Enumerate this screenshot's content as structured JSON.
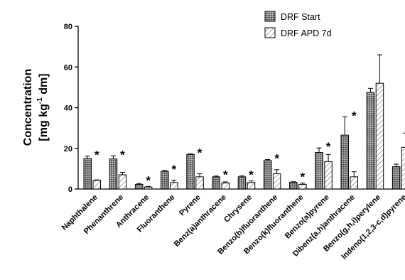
{
  "chart_data": {
    "type": "bar",
    "ylabel_line1": "Concentration",
    "ylabel_line2_prefix": "[mg kg",
    "ylabel_line2_sup": "-1",
    "ylabel_line2_suffix": " dm]",
    "ylim": [
      0,
      80
    ],
    "yticks": [
      "0",
      "20",
      "40",
      "60",
      "80"
    ],
    "categories": [
      "Naphthalene",
      "Phenanthrene",
      "Anthracene",
      "Fluoranthene",
      "Pyrene",
      "Benz(a)anthracene",
      "Chrysene",
      "Benzo(b)fluoranthene",
      "Benzo(k)fluoranthene",
      "Benzo(a)pyrene",
      "Dibenz(a,h)anthracene",
      "Benzo(g,h,i)perylene",
      "Indeno(1,2,3-c,d)pyrene"
    ],
    "series": [
      {
        "name": "DRF Start",
        "values": [
          15,
          14.8,
          2.3,
          8.7,
          17,
          6,
          6,
          14,
          3.3,
          18,
          26.5,
          47.5,
          11
        ],
        "errors": [
          1.2,
          1.5,
          0.4,
          0.4,
          0.3,
          0.4,
          0.5,
          0.5,
          0.3,
          2.2,
          9,
          2,
          1.2
        ]
      },
      {
        "name": "DRF APD 7d",
        "values": [
          4.3,
          7,
          1,
          3.2,
          6,
          3,
          3.2,
          7.5,
          2.3,
          13.5,
          6,
          52,
          20.5
        ],
        "errors": [
          0.2,
          1.2,
          0.3,
          1.2,
          1.5,
          0.5,
          0.8,
          2,
          0.6,
          3.5,
          2.5,
          14,
          7
        ]
      }
    ],
    "significance_marker": "*",
    "significant_categories": [
      "Naphthalene",
      "Phenanthrene",
      "Anthracene",
      "Fluoranthene",
      "Pyrene",
      "Benz(a)anthracene",
      "Chrysene",
      "Benzo(b)fluoranthene",
      "Benzo(k)fluoranthene",
      "Benzo(a)pyrene",
      "Dibenz(a,h)anthracene"
    ],
    "legend_position": "top-right",
    "grid": false
  }
}
